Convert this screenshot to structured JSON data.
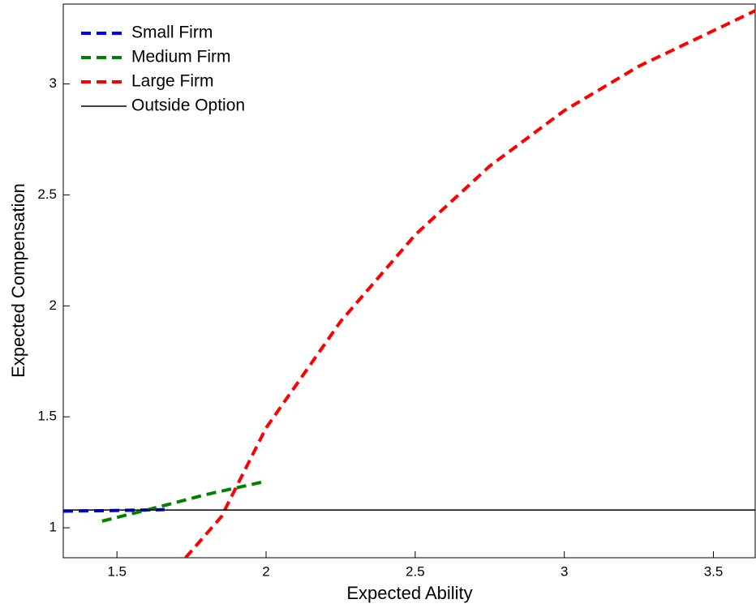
{
  "chart_data": {
    "type": "line",
    "xlabel": "Expected Ability",
    "ylabel": "Expected Compensation",
    "xlim": [
      1.32,
      3.64
    ],
    "ylim": [
      0.865,
      3.36
    ],
    "xticks": [
      1.5,
      2,
      2.5,
      3,
      3.5
    ],
    "yticks": [
      1,
      1.5,
      2,
      2.5,
      3
    ],
    "legend": "upper-left",
    "series": [
      {
        "name": "Small Firm",
        "color": "#0000ff",
        "dashed": true,
        "x": [
          1.32,
          1.45,
          1.55,
          1.66
        ],
        "values": [
          1.075,
          1.077,
          1.079,
          1.082
        ]
      },
      {
        "name": "Medium Firm",
        "color": "#008000",
        "dashed": true,
        "x": [
          1.45,
          1.6,
          1.8,
          2.0
        ],
        "values": [
          1.03,
          1.08,
          1.15,
          1.21
        ]
      },
      {
        "name": "Large Firm",
        "color": "#ff0000",
        "dashed": true,
        "x": [
          1.73,
          1.85,
          2.0,
          2.25,
          2.5,
          2.75,
          3.0,
          3.25,
          3.5,
          3.64
        ],
        "values": [
          0.865,
          1.05,
          1.45,
          1.93,
          2.32,
          2.63,
          2.88,
          3.08,
          3.24,
          3.33
        ]
      },
      {
        "name": "Outside Option",
        "color": "#000000",
        "dashed": false,
        "x": [
          1.32,
          3.64
        ],
        "values": [
          1.08,
          1.08
        ]
      }
    ]
  }
}
